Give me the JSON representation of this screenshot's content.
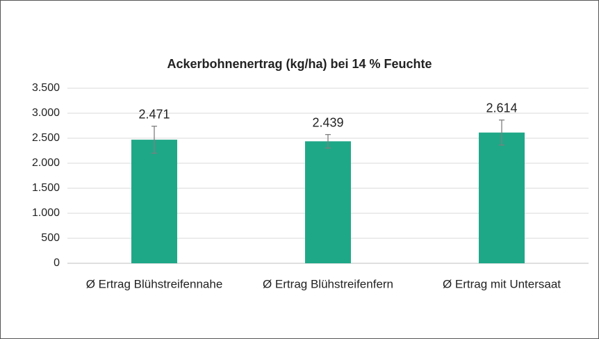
{
  "chart_data": {
    "type": "bar",
    "title": "Ackerbohnenertrag (kg/ha) bei 14 % Feuchte",
    "categories": [
      "Ø Ertrag Blühstreifennahe",
      "Ø Ertrag Blühstreifenfern",
      "Ø Ertrag mit Untersaat"
    ],
    "values": [
      2471,
      2439,
      2614
    ],
    "value_labels": [
      "2.471",
      "2.439",
      "2.614"
    ],
    "errors": [
      270,
      135,
      250
    ],
    "color": "#1fa888",
    "ylim": [
      0,
      3500
    ],
    "yticks": [
      0,
      500,
      {
        "value": 1000,
        "label": "1.000"
      },
      {
        "value": 1500,
        "label": "1.500"
      },
      {
        "value": 2000,
        "label": "2.000"
      },
      {
        "value": 2500,
        "label": "2.500"
      },
      {
        "value": 3000,
        "label": "3.000"
      },
      {
        "value": 3500,
        "label": "3.500"
      }
    ],
    "grid": true
  }
}
